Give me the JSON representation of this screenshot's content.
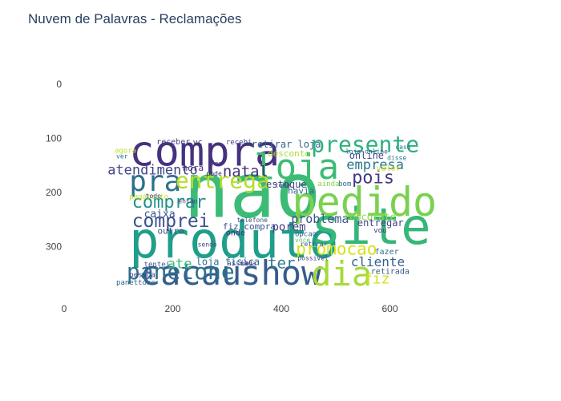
{
  "title": "Nuvem de Palavras - Reclamações",
  "chart_data": {
    "type": "image",
    "title": "Nuvem de Palavras - Reclamações",
    "xlim": [
      0,
      800
    ],
    "ylim": [
      400,
      0
    ],
    "x_ticks": [
      "0",
      "200",
      "400",
      "600"
    ],
    "y_ticks": [
      "0",
      "100",
      "200",
      "300"
    ],
    "background": "#ffffff",
    "palette": "viridis",
    "words": [
      {
        "text": "nao",
        "x": 220,
        "y": 245,
        "size": 95,
        "color": "#3bbb75"
      },
      {
        "text": "produto",
        "x": 120,
        "y": 320,
        "size": 62,
        "color": "#1f9e89"
      },
      {
        "text": "site",
        "x": 455,
        "y": 295,
        "size": 62,
        "color": "#35b779"
      },
      {
        "text": "compra",
        "x": 120,
        "y": 150,
        "size": 52,
        "color": "#46327e"
      },
      {
        "text": "pedido",
        "x": 420,
        "y": 243,
        "size": 50,
        "color": "#7ad151"
      },
      {
        "text": "cacau",
        "x": 140,
        "y": 370,
        "size": 42,
        "color": "#365c8d"
      },
      {
        "text": "show",
        "x": 325,
        "y": 370,
        "size": 42,
        "color": "#365c8d"
      },
      {
        "text": "dia",
        "x": 455,
        "y": 372,
        "size": 42,
        "color": "#a2da37"
      },
      {
        "text": "loja",
        "x": 350,
        "y": 175,
        "size": 44,
        "color": "#3dbc74"
      },
      {
        "text": "presente",
        "x": 455,
        "y": 125,
        "size": 28,
        "color": "#2cb17e"
      },
      {
        "text": "pra",
        "x": 120,
        "y": 197,
        "size": 36,
        "color": "#2d708e"
      },
      {
        "text": "entrega",
        "x": 205,
        "y": 192,
        "size": 28,
        "color": "#b5de2b"
      },
      {
        "text": "panetone",
        "x": 115,
        "y": 360,
        "size": 28,
        "color": "#2d708e"
      },
      {
        "text": "atendimento",
        "x": 80,
        "y": 167,
        "size": 17,
        "color": "#414487"
      },
      {
        "text": "natal",
        "x": 292,
        "y": 170,
        "size": 19,
        "color": "#46337e"
      },
      {
        "text": "comprar",
        "x": 125,
        "y": 228,
        "size": 22,
        "color": "#21918c"
      },
      {
        "text": "comprei",
        "x": 125,
        "y": 264,
        "size": 23,
        "color": "#3b528b"
      },
      {
        "text": "empresa",
        "x": 520,
        "y": 157,
        "size": 17,
        "color": "#2a788e"
      },
      {
        "text": "pois",
        "x": 530,
        "y": 183,
        "size": 22,
        "color": "#443983"
      },
      {
        "text": "promocao",
        "x": 427,
        "y": 315,
        "size": 21,
        "color": "#d8e219"
      },
      {
        "text": "problema",
        "x": 418,
        "y": 256,
        "size": 15,
        "color": "#3a538b"
      },
      {
        "text": "cliente",
        "x": 528,
        "y": 336,
        "size": 16,
        "color": "#355f8d"
      },
      {
        "text": "ter",
        "x": 375,
        "y": 340,
        "size": 19,
        "color": "#2a788e"
      },
      {
        "text": "ate",
        "x": 190,
        "y": 340,
        "size": 17,
        "color": "#37b878"
      },
      {
        "text": "porem",
        "x": 383,
        "y": 270,
        "size": 14,
        "color": "#433e85"
      },
      {
        "text": "fiz",
        "x": 552,
        "y": 368,
        "size": 18,
        "color": "#d0e11c"
      },
      {
        "text": "estoque",
        "x": 372,
        "y": 191,
        "size": 12,
        "color": "#404688"
      },
      {
        "text": "caixa",
        "x": 147,
        "y": 246,
        "size": 13,
        "color": "#3b528b"
      },
      {
        "text": "retirar loja",
        "x": 345,
        "y": 117,
        "size": 12,
        "color": "#31678e"
      },
      {
        "text": "desconto",
        "x": 375,
        "y": 133,
        "size": 11,
        "color": "#a5db36"
      },
      {
        "text": "online",
        "x": 525,
        "y": 138,
        "size": 12,
        "color": "#3e4989"
      },
      {
        "text": "chocolate",
        "x": 515,
        "y": 251,
        "size": 12,
        "color": "#8fd744"
      },
      {
        "text": "entregar",
        "x": 540,
        "y": 262,
        "size": 12,
        "color": "#404387"
      },
      {
        "text": "loja fisica",
        "x": 243,
        "y": 334,
        "size": 12,
        "color": "#2f6c8e"
      },
      {
        "text": "fiz compra",
        "x": 292,
        "y": 268,
        "size": 11,
        "color": "#3b528b"
      },
      {
        "text": "outro",
        "x": 172,
        "y": 276,
        "size": 11,
        "color": "#3e4a89"
      },
      {
        "text": "hora",
        "x": 218,
        "y": 160,
        "size": 11,
        "color": "#472d7b"
      },
      {
        "text": "havia",
        "x": 412,
        "y": 202,
        "size": 11,
        "color": "#31678e"
      },
      {
        "text": "pagamento",
        "x": 120,
        "y": 212,
        "size": 9,
        "color": "#c8e020"
      },
      {
        "text": "receber",
        "x": 170,
        "y": 111,
        "size": 10,
        "color": "#414487"
      },
      {
        "text": "vc",
        "x": 237,
        "y": 112,
        "size": 10,
        "color": "#472a7a"
      },
      {
        "text": "onde",
        "x": 298,
        "y": 279,
        "size": 10,
        "color": "#46337e"
      },
      {
        "text": "ainda",
        "x": 467,
        "y": 188,
        "size": 9,
        "color": "#86d549"
      },
      {
        "text": "bom",
        "x": 505,
        "y": 188,
        "size": 9,
        "color": "#31688e"
      },
      {
        "text": "valor",
        "x": 575,
        "y": 160,
        "size": 10,
        "color": "#d8e219"
      },
      {
        "text": "fazer",
        "x": 572,
        "y": 314,
        "size": 10,
        "color": "#2c728e"
      },
      {
        "text": "retirada",
        "x": 565,
        "y": 350,
        "size": 10,
        "color": "#38588c"
      },
      {
        "text": "panettone",
        "x": 96,
        "y": 370,
        "size": 9,
        "color": "#31688e"
      },
      {
        "text": "pessoa",
        "x": 120,
        "y": 356,
        "size": 9,
        "color": "#414487"
      },
      {
        "text": "tentei",
        "x": 147,
        "y": 337,
        "size": 9,
        "color": "#3b528b"
      },
      {
        "text": "todo",
        "x": 150,
        "y": 210,
        "size": 8,
        "color": "#3e4a89"
      },
      {
        "text": "agora",
        "x": 93,
        "y": 127,
        "size": 9,
        "color": "#c2df23"
      },
      {
        "text": "ver",
        "x": 96,
        "y": 137,
        "size": 8,
        "color": "#2c728e"
      },
      {
        "text": "assim",
        "x": 300,
        "y": 335,
        "size": 9,
        "color": "#3b528b"
      },
      {
        "text": "opcao",
        "x": 425,
        "y": 281,
        "size": 9,
        "color": "#355f8d"
      },
      {
        "text": "voce",
        "x": 425,
        "y": 292,
        "size": 8,
        "color": "#5ec962"
      },
      {
        "text": "recebi",
        "x": 298,
        "y": 111,
        "size": 9,
        "color": "#414487"
      },
      {
        "text": "vou",
        "x": 570,
        "y": 274,
        "size": 9,
        "color": "#46337e"
      },
      {
        "text": "disse",
        "x": 595,
        "y": 140,
        "size": 8,
        "color": "#2a788e"
      },
      {
        "text": "caso",
        "x": 610,
        "y": 120,
        "size": 8,
        "color": "#2c728e"
      },
      {
        "text": "loja online",
        "x": 518,
        "y": 128,
        "size": 8,
        "color": "#365c8d"
      },
      {
        "text": "entao",
        "x": 210,
        "y": 220,
        "size": 8,
        "color": "#414487"
      },
      {
        "text": "sendo",
        "x": 246,
        "y": 300,
        "size": 8,
        "color": "#404688"
      },
      {
        "text": "telefone",
        "x": 318,
        "y": 255,
        "size": 8,
        "color": "#3e4a89"
      },
      {
        "text": "possivel",
        "x": 430,
        "y": 325,
        "size": 8,
        "color": "#433e85"
      },
      {
        "text": "retirar",
        "x": 435,
        "y": 299,
        "size": 8,
        "color": "#3b528b"
      },
      {
        "text": "nada",
        "x": 325,
        "y": 335,
        "size": 8,
        "color": "#46337e"
      },
      {
        "text": "pode",
        "x": 262,
        "y": 169,
        "size": 8,
        "color": "#482878"
      },
      {
        "text": "faz",
        "x": 270,
        "y": 150,
        "size": 8,
        "color": "#46327e"
      },
      {
        "text": "toda",
        "x": 388,
        "y": 190,
        "size": 8,
        "color": "#404688"
      }
    ]
  }
}
